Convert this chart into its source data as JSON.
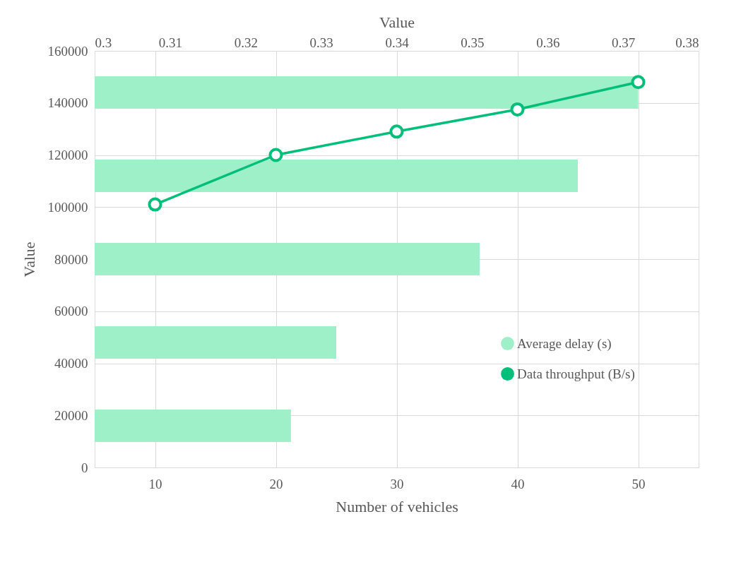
{
  "chart_data": [
    {
      "type": "bar",
      "orientation": "horizontal",
      "categories": [
        null,
        null,
        null,
        null,
        null
      ],
      "xlabel": "Value",
      "xlim": [
        0.3,
        0.38
      ],
      "xticks": [
        0.3,
        0.31,
        0.32,
        0.33,
        0.34,
        0.35,
        0.36,
        0.37,
        0.38
      ],
      "legend": "right",
      "series": [
        {
          "name": "Average delay (s)",
          "color": "#9ef0c8",
          "values": [
            0.372,
            0.364,
            0.351,
            0.332,
            0.326
          ]
        }
      ]
    },
    {
      "type": "line",
      "categories": [
        "10",
        "20",
        "30",
        "40",
        "50"
      ],
      "xlabel": "Number of vehicles",
      "ylabel": "Value",
      "ylim": [
        0,
        160000
      ],
      "yticks": [
        0,
        20000,
        40000,
        60000,
        80000,
        100000,
        120000,
        140000,
        160000
      ],
      "grid": true,
      "legend": "right",
      "marker": "circle",
      "series": [
        {
          "name": "Data throughput (B/s)",
          "color": "#00bf7a",
          "values": [
            101000,
            120000,
            129000,
            137500,
            148000
          ]
        }
      ]
    }
  ]
}
